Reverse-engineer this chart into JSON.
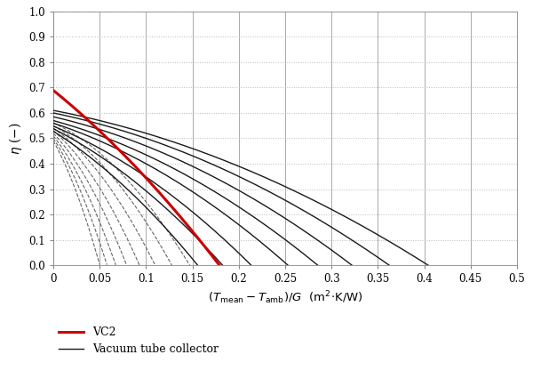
{
  "title": "",
  "xlabel_parts": [
    "(",
    "T",
    "mean",
    " − ",
    "T",
    "amb",
    ")/G  (m²·K/W)"
  ],
  "ylabel": "$\\eta$ (-)",
  "xlim": [
    0,
    0.5
  ],
  "ylim": [
    0.0,
    1.0
  ],
  "xticks": [
    0,
    0.05,
    0.1,
    0.15,
    0.2,
    0.25,
    0.3,
    0.35,
    0.4,
    0.45,
    0.5
  ],
  "yticks": [
    0.0,
    0.1,
    0.2,
    0.3,
    0.4,
    0.5,
    0.6,
    0.7,
    0.8,
    0.9,
    1.0
  ],
  "vc2": {
    "eta0": 0.689,
    "a1": 2.95,
    "a2": 5.0,
    "color": "#cc0000",
    "lw": 2.2,
    "linestyle": "-"
  },
  "vacuum_tubes": [
    {
      "eta0": 0.61,
      "a1": 0.7,
      "a2": 2.0,
      "linestyle": "-",
      "color": "#1a1a1a",
      "lw": 1.0
    },
    {
      "eta0": 0.6,
      "a1": 0.75,
      "a2": 2.5,
      "linestyle": "-",
      "color": "#1a1a1a",
      "lw": 1.0
    },
    {
      "eta0": 0.585,
      "a1": 0.85,
      "a2": 3.0,
      "linestyle": "-",
      "color": "#1a1a1a",
      "lw": 1.0
    },
    {
      "eta0": 0.57,
      "a1": 1.0,
      "a2": 3.5,
      "linestyle": "-",
      "color": "#1a1a1a",
      "lw": 1.0
    },
    {
      "eta0": 0.56,
      "a1": 1.2,
      "a2": 4.0,
      "linestyle": "-",
      "color": "#1a1a1a",
      "lw": 1.0
    },
    {
      "eta0": 0.548,
      "a1": 1.5,
      "a2": 5.0,
      "linestyle": "-",
      "color": "#1a1a1a",
      "lw": 1.0
    },
    {
      "eta0": 0.538,
      "a1": 1.85,
      "a2": 6.0,
      "linestyle": "-",
      "color": "#1a1a1a",
      "lw": 1.0
    },
    {
      "eta0": 0.528,
      "a1": 2.3,
      "a2": 7.0,
      "linestyle": "-",
      "color": "#1a1a1a",
      "lw": 1.0
    },
    {
      "eta0": 0.56,
      "a1": 1.6,
      "a2": 15.0,
      "linestyle": "--",
      "color": "#666666",
      "lw": 0.8
    },
    {
      "eta0": 0.55,
      "a1": 2.0,
      "a2": 18.0,
      "linestyle": "--",
      "color": "#666666",
      "lw": 0.8
    },
    {
      "eta0": 0.54,
      "a1": 2.5,
      "a2": 22.0,
      "linestyle": "--",
      "color": "#666666",
      "lw": 0.8
    },
    {
      "eta0": 0.53,
      "a1": 3.1,
      "a2": 28.0,
      "linestyle": "--",
      "color": "#666666",
      "lw": 0.8
    },
    {
      "eta0": 0.52,
      "a1": 3.8,
      "a2": 35.0,
      "linestyle": "--",
      "color": "#666666",
      "lw": 0.8
    },
    {
      "eta0": 0.51,
      "a1": 4.6,
      "a2": 44.0,
      "linestyle": "--",
      "color": "#666666",
      "lw": 0.8
    },
    {
      "eta0": 0.5,
      "a1": 5.5,
      "a2": 54.0,
      "linestyle": "--",
      "color": "#666666",
      "lw": 0.8
    },
    {
      "eta0": 0.49,
      "a1": 6.5,
      "a2": 65.0,
      "linestyle": "--",
      "color": "#666666",
      "lw": 0.8
    }
  ],
  "legend_vc2_label": "VC2",
  "legend_vtc_label": "Vacuum tube collector",
  "vc2_color": "#cc0000",
  "vtc_color": "#1a1a1a",
  "grid_color": "#bbbbbb",
  "vline_color": "#aaaaaa",
  "bg_color": "#ffffff"
}
